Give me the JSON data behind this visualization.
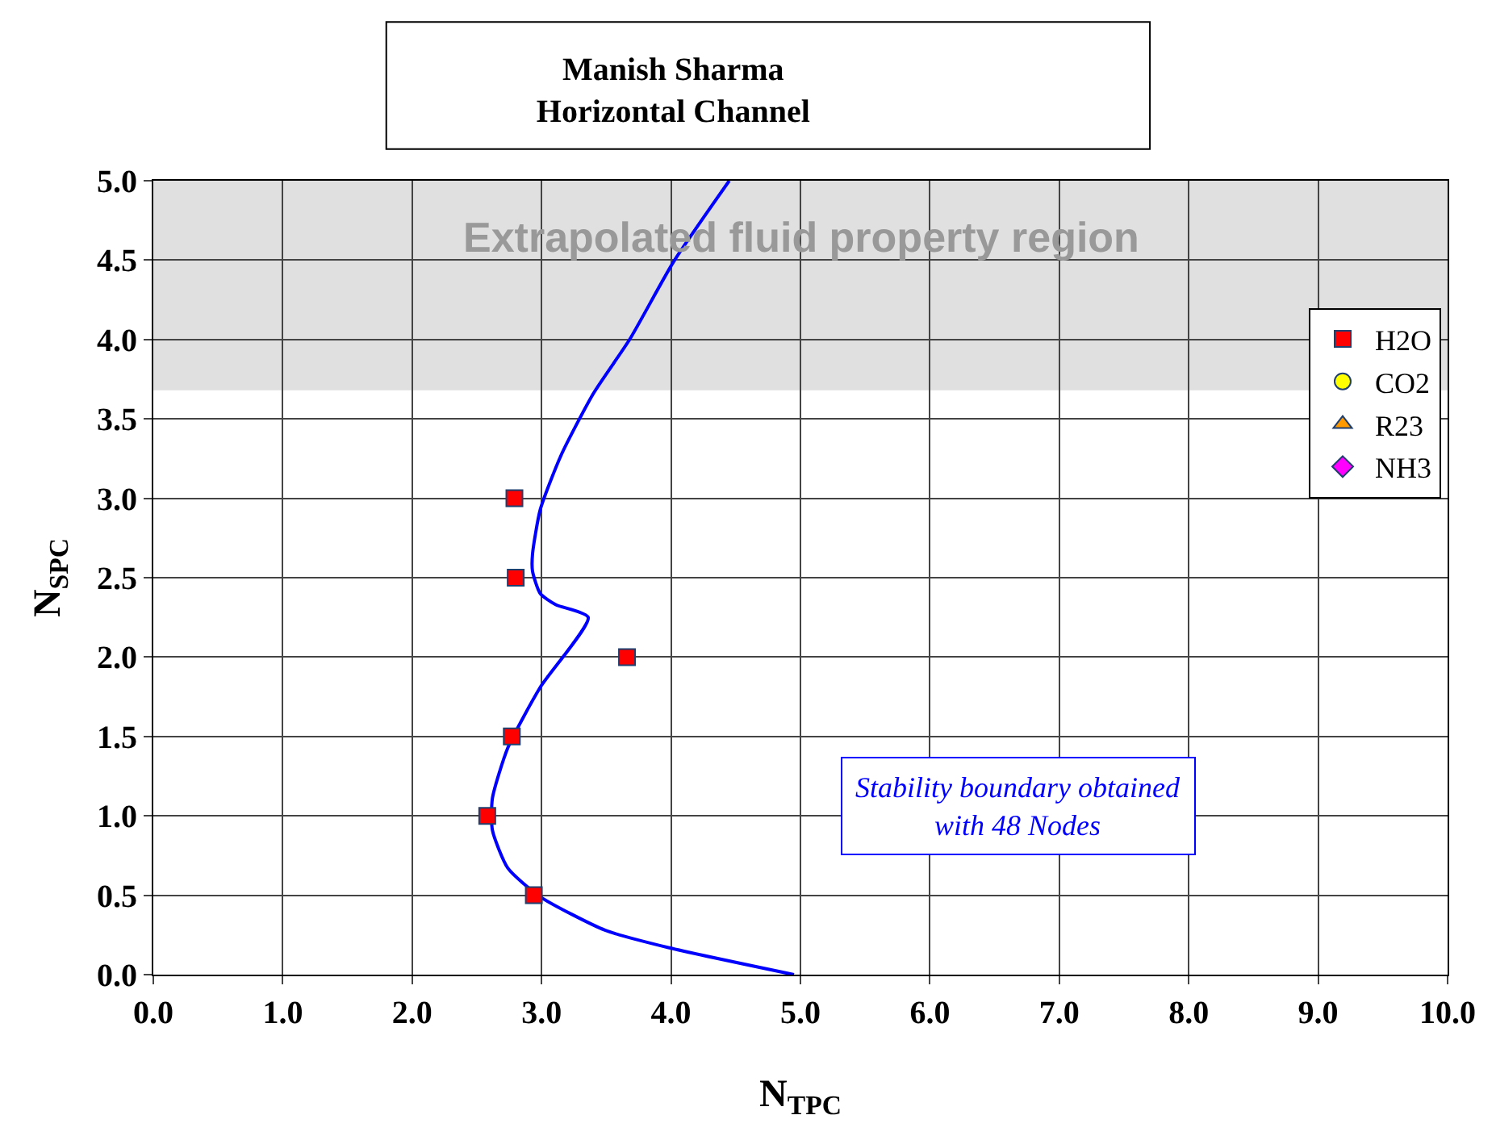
{
  "chart_data": {
    "type": "scatter",
    "title": "Manish Sharma\nHorizontal Channel",
    "xlabel": "N$_{TPC}$",
    "ylabel": "N$_{SPC}$",
    "xlim": [
      0,
      10
    ],
    "xticks": [
      {
        "value": 0,
        "label": "0.0"
      },
      {
        "value": 1,
        "label": "1.0"
      },
      {
        "value": 2,
        "label": "2.0"
      },
      {
        "value": 3,
        "label": "3.0"
      },
      {
        "value": 4,
        "label": "4.0"
      },
      {
        "value": 5,
        "label": "5.0"
      },
      {
        "value": 6,
        "label": "6.0"
      },
      {
        "value": 7,
        "label": "7.0"
      },
      {
        "value": 8,
        "label": "8.0"
      },
      {
        "value": 9,
        "label": "9.0"
      },
      {
        "value": 10,
        "label": "10.0"
      }
    ],
    "ylim": [
      0,
      5
    ],
    "yticks": [
      {
        "value": 0,
        "label": "0.0"
      },
      {
        "value": 0.5,
        "label": "0.5"
      },
      {
        "value": 1,
        "label": "1.0"
      },
      {
        "value": 1.5,
        "label": "1.5"
      },
      {
        "value": 2,
        "label": "2.0"
      },
      {
        "value": 2.5,
        "label": "2.5"
      },
      {
        "value": 3,
        "label": "3.0"
      },
      {
        "value": 3.5,
        "label": "3.5"
      },
      {
        "value": 4,
        "label": "4.0"
      },
      {
        "value": 4.5,
        "label": "4.5"
      },
      {
        "value": 5,
        "label": "5.0"
      }
    ],
    "grid": true,
    "legend": "right",
    "bands": [
      {
        "axis": "y",
        "from": 3.68,
        "to": 5,
        "label": "Extrapolated fluid property region",
        "color": "#e0e0e0"
      }
    ],
    "annotations": [
      "Stability boundary obtained\nwith 48 Nodes"
    ],
    "series": [
      {
        "type": "line",
        "color": "#0000ff",
        "marker": "none",
        "line_style": "solid",
        "x": [
          4.95,
          3.98,
          3.49,
          2.99,
          2.74,
          2.62,
          2.62,
          2.74,
          2.99,
          3.36,
          3.11,
          2.99,
          2.93,
          2.93,
          2.99,
          3.15,
          3.4,
          3.68,
          4.02,
          4.45
        ],
        "values": [
          0,
          0.17,
          0.28,
          0.49,
          0.67,
          0.91,
          1.11,
          1.43,
          1.81,
          2.25,
          2.33,
          2.4,
          2.54,
          2.65,
          2.93,
          3.27,
          3.66,
          4.0,
          4.49,
          5.0
        ]
      },
      {
        "name": "H2O",
        "color": "#ff0000",
        "marker": "square",
        "x": [
          2.79,
          2.8,
          3.66,
          2.77,
          2.58,
          2.94
        ],
        "values": [
          3.0,
          2.5,
          2.0,
          1.5,
          1.0,
          0.5
        ]
      },
      {
        "name": "CO2",
        "color": "#ffff00",
        "marker": "circle"
      },
      {
        "name": "R23",
        "color": "#ff9900",
        "marker": "triangle"
      },
      {
        "name": "NH3",
        "color": "#ff00ff",
        "marker": "diamond"
      }
    ]
  }
}
